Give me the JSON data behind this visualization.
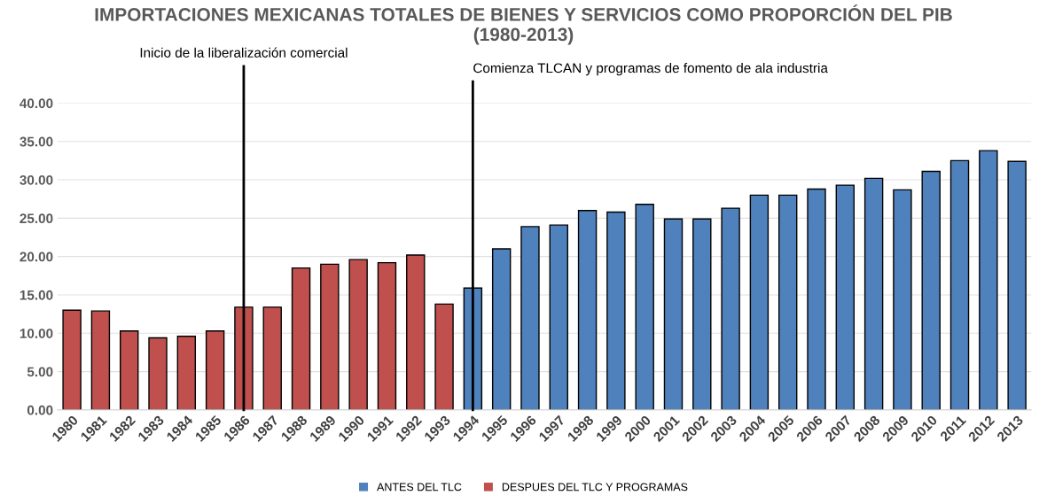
{
  "chart_data": {
    "type": "bar",
    "title": "IMPORTACIONES MEXICANAS TOTALES DE BIENES Y SERVICIOS COMO PROPORCIÓN DEL PIB\n(1980-2013)",
    "categories": [
      "1980",
      "1981",
      "1982",
      "1983",
      "1984",
      "1985",
      "1986",
      "1987",
      "1988",
      "1989",
      "1990",
      "1991",
      "1992",
      "1993",
      "1994",
      "1995",
      "1996",
      "1997",
      "1998",
      "1999",
      "2000",
      "2001",
      "2002",
      "2003",
      "2004",
      "2005",
      "2006",
      "2007",
      "2008",
      "2009",
      "2010",
      "2011",
      "2012",
      "2013"
    ],
    "series": [
      {
        "name": "ANTES DEL TLC",
        "color": "#4f81bd",
        "values": [
          null,
          null,
          null,
          null,
          null,
          null,
          null,
          null,
          null,
          null,
          null,
          null,
          null,
          null,
          15.9,
          21.0,
          23.9,
          24.1,
          26.0,
          25.8,
          26.8,
          24.9,
          24.9,
          26.3,
          28.0,
          28.0,
          28.8,
          29.3,
          30.2,
          28.7,
          31.1,
          32.5,
          33.8,
          32.4
        ]
      },
      {
        "name": "DESPUES DEL TLC Y PROGRAMAS",
        "color": "#c0504d",
        "values": [
          13.0,
          12.9,
          10.3,
          9.4,
          9.6,
          10.3,
          13.4,
          13.4,
          18.5,
          19.0,
          19.6,
          19.2,
          20.2,
          13.8,
          null,
          null,
          null,
          null,
          null,
          null,
          null,
          null,
          null,
          null,
          null,
          null,
          null,
          null,
          null,
          null,
          null,
          null,
          null,
          null
        ]
      }
    ],
    "stacked": true,
    "ylim": [
      0,
      40
    ],
    "yticks": [
      {
        "value": 0,
        "label": "0.00"
      },
      {
        "value": 5,
        "label": "5.00"
      },
      {
        "value": 10,
        "label": "10.00"
      },
      {
        "value": 15,
        "label": "15.00"
      },
      {
        "value": 20,
        "label": "20.00"
      },
      {
        "value": 25,
        "label": "25.00"
      },
      {
        "value": 30,
        "label": "30.00"
      },
      {
        "value": 35,
        "label": "35.00"
      },
      {
        "value": 40,
        "label": "40.00"
      }
    ],
    "ref_lines": [
      {
        "axis": "x",
        "value": "1986",
        "label": "Inicio de la liberalización comercial",
        "color": "#000000"
      },
      {
        "axis": "x",
        "value": "1994",
        "label": "Comienza TLCAN y programas de fomento de ala industria",
        "color": "#000000"
      }
    ],
    "grid": "y",
    "legend": "bottom"
  }
}
